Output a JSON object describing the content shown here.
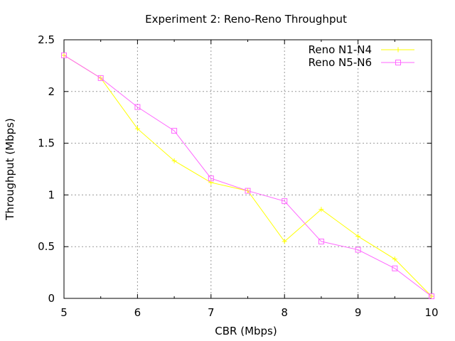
{
  "chart_data": {
    "type": "line",
    "title": "Experiment 2: Reno-Reno Throughput",
    "xlabel": "CBR (Mbps)",
    "ylabel": "Throughput (Mbps)",
    "xlim": [
      5,
      10
    ],
    "ylim": [
      0,
      2.5
    ],
    "x_ticks": [
      "5",
      "6",
      "7",
      "8",
      "9",
      "10"
    ],
    "y_ticks": [
      "0",
      "0.5",
      "1",
      "1.5",
      "2",
      "2.5"
    ],
    "grid": true,
    "legend_position": "top-right",
    "x": [
      5,
      5.5,
      6,
      6.5,
      7,
      7.5,
      8,
      8.5,
      9,
      9.5,
      10
    ],
    "series": [
      {
        "name": "Reno N1-N4",
        "color": "#ffff00",
        "marker": "plus",
        "values": [
          2.35,
          2.13,
          1.64,
          1.33,
          1.12,
          1.04,
          0.55,
          0.86,
          0.6,
          0.38,
          0.02
        ]
      },
      {
        "name": "Reno N5-N6",
        "color": "#ff66ff",
        "marker": "square",
        "values": [
          2.35,
          2.13,
          1.85,
          1.62,
          1.16,
          1.04,
          0.94,
          0.55,
          0.47,
          0.29,
          0.02
        ]
      }
    ]
  }
}
